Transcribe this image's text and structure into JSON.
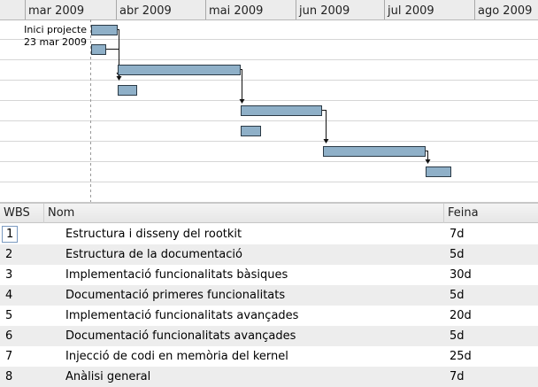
{
  "timeline": {
    "months": [
      "mar 2009",
      "abr 2009",
      "mai 2009",
      "jun 2009",
      "jul 2009",
      "ago 2009"
    ],
    "marker_label_1": "Inici projecte",
    "marker_label_2": "23 mar 2009"
  },
  "colors": {
    "bar_fill": "#8fb0c8",
    "bar_stroke": "#2b3a46",
    "row_alt": "#ededed"
  },
  "table": {
    "headers": {
      "wbs": "WBS",
      "nom": "Nom",
      "feina": "Feina"
    },
    "rows": [
      {
        "wbs": "1",
        "nom": "Estructura i disseny del rootkit",
        "feina": "7d"
      },
      {
        "wbs": "2",
        "nom": "Estructura de la documentació",
        "feina": "5d"
      },
      {
        "wbs": "3",
        "nom": "Implementació funcionalitats bàsiques",
        "feina": "30d"
      },
      {
        "wbs": "4",
        "nom": "Documentació primeres funcionalitats",
        "feina": "5d"
      },
      {
        "wbs": "5",
        "nom": "Implementació funcionalitats avançades",
        "feina": "20d"
      },
      {
        "wbs": "6",
        "nom": "Documentació funcionalitats avançades",
        "feina": "5d"
      },
      {
        "wbs": "7",
        "nom": "Injecció de codi en memòria del kernel",
        "feina": "25d"
      },
      {
        "wbs": "8",
        "nom": "Anàlisi general",
        "feina": "7d"
      }
    ]
  }
}
